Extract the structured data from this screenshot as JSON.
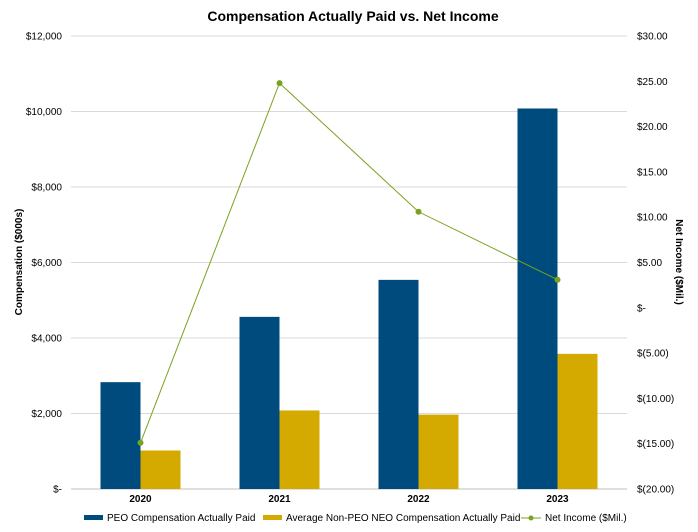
{
  "chart_data": {
    "type": "bar",
    "title": "Compensation Actually Paid vs. Net Income",
    "categories": [
      "2020",
      "2021",
      "2022",
      "2023"
    ],
    "ylabel": "Compensation ($000s)",
    "ylabel_right": "Net Income ($Mil.)",
    "ylim": [
      0,
      12000
    ],
    "ylim_right": [
      -20,
      30
    ],
    "y_ticks": [
      {
        "value": 0,
        "label": "$-"
      },
      {
        "value": 2000,
        "label": "$2,000"
      },
      {
        "value": 4000,
        "label": "$4,000"
      },
      {
        "value": 6000,
        "label": "$6,000"
      },
      {
        "value": 8000,
        "label": "$8,000"
      },
      {
        "value": 10000,
        "label": "$10,000"
      },
      {
        "value": 12000,
        "label": "$12,000"
      }
    ],
    "y_ticks_right": [
      {
        "value": -20,
        "label": "$(20.00)"
      },
      {
        "value": -15,
        "label": "$(15.00)"
      },
      {
        "value": -10,
        "label": "$(10.00)"
      },
      {
        "value": -5,
        "label": "$(5.00)"
      },
      {
        "value": 0,
        "label": "$-"
      },
      {
        "value": 5,
        "label": "$5.00"
      },
      {
        "value": 10,
        "label": "$10.00"
      },
      {
        "value": 15,
        "label": "$15.00"
      },
      {
        "value": 20,
        "label": "$20.00"
      },
      {
        "value": 25,
        "label": "$25.00"
      },
      {
        "value": 30,
        "label": "$30.00"
      }
    ],
    "grid": true,
    "legend_position": "bottom",
    "series": [
      {
        "name": "PEO Compensation Actually Paid",
        "type": "bar",
        "axis": "left",
        "color": "#004b7d",
        "values": [
          2830,
          4560,
          5540,
          10080
        ]
      },
      {
        "name": "Average Non-PEO NEO Compensation Actually Paid",
        "type": "bar",
        "axis": "left",
        "color": "#d4aa00",
        "values": [
          1020,
          2080,
          1970,
          3580
        ]
      },
      {
        "name": "Net Income ($Mil.)",
        "type": "line",
        "axis": "right",
        "color": "#7aa21f",
        "values": [
          -14.9,
          24.8,
          10.6,
          3.1
        ]
      }
    ]
  }
}
